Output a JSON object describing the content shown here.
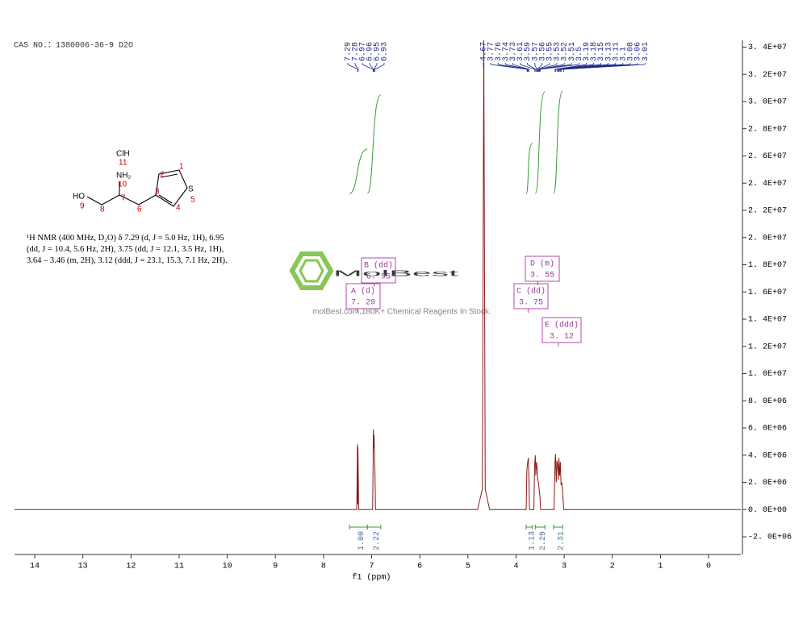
{
  "chart_data": {
    "type": "spectrum",
    "header": "CAS NO.：1380006-36-9 D2O",
    "description": "¹H NMR (400 MHz, D₂O) δ 7.29 (d, J = 5.0 Hz, 1H), 6.95 (dd, J = 10.4, 5.6 Hz, 2H), 3.75 (dd, J = 12.1, 3.5 Hz, 1H), 3.64 – 3.46 (m, 2H), 3.12 (ddd, J = 23.1, 15.3, 7.1 Hz, 2H).",
    "structure": {
      "atoms": [
        "ClH",
        "11",
        "NH₂",
        "10",
        "HO",
        "9",
        "8",
        "7",
        "6",
        "3",
        "2",
        "1",
        "S",
        "5",
        "4"
      ]
    },
    "watermark": {
      "logo": "MolBest",
      "tagline": "molBest.com,180K+ Chemical Reagents In Stock."
    },
    "x_label": "f1 (ppm)",
    "color": "#8b1a1a",
    "xlim": [
      14.42,
      -0.67
    ],
    "xticks": [
      14,
      13,
      12,
      11,
      10,
      9,
      8,
      7,
      6,
      5,
      4,
      3,
      2,
      1,
      0
    ],
    "ylim": [
      -3300000,
      34500000
    ],
    "yticks": [
      {
        "value": -2000000,
        "label": "-2. 0E+06"
      },
      {
        "value": 0,
        "label": "0. 0E+00"
      },
      {
        "value": 2000000,
        "label": "2. 0E+06"
      },
      {
        "value": 4000000,
        "label": "4. 0E+06"
      },
      {
        "value": 6000000,
        "label": "6. 0E+06"
      },
      {
        "value": 8000000,
        "label": "8. 0E+06"
      },
      {
        "value": 10000000,
        "label": "1. 0E+07"
      },
      {
        "value": 12000000,
        "label": "1. 2E+07"
      },
      {
        "value": 14000000,
        "label": "1. 4E+07"
      },
      {
        "value": 16000000,
        "label": "1. 6E+07"
      },
      {
        "value": 18000000,
        "label": "1. 8E+07"
      },
      {
        "value": 20000000,
        "label": "2. 0E+07"
      },
      {
        "value": 22000000,
        "label": "2. 2E+07"
      },
      {
        "value": 24000000,
        "label": "2. 4E+07"
      },
      {
        "value": 26000000,
        "label": "2. 6E+07"
      },
      {
        "value": 28000000,
        "label": "2. 8E+07"
      },
      {
        "value": 30000000,
        "label": "3. 0E+07"
      },
      {
        "value": 32000000,
        "label": "3. 2E+07"
      },
      {
        "value": 34000000,
        "label": "3. 4E+07"
      }
    ],
    "x": [
      14.42,
      7.31,
      7.295,
      7.29,
      7.285,
      7.27,
      6.98,
      6.97,
      6.965,
      6.955,
      6.95,
      6.94,
      6.93,
      6.92,
      4.8,
      4.7,
      4.67,
      4.64,
      4.55,
      3.79,
      3.775,
      3.765,
      3.745,
      3.735,
      3.72,
      3.63,
      3.615,
      3.6,
      3.59,
      3.575,
      3.56,
      3.55,
      3.535,
      3.52,
      3.505,
      3.49,
      3.21,
      3.19,
      3.18,
      3.165,
      3.15,
      3.135,
      3.12,
      3.11,
      3.095,
      3.08,
      3.065,
      3.05,
      3.03,
      3.01,
      -0.67
    ],
    "values": [
      0,
      0,
      4800000,
      400000,
      4600000,
      0,
      0,
      3500000,
      5900000,
      4500000,
      5500000,
      3800000,
      2500000,
      0,
      0,
      1500000,
      34500000,
      1500000,
      0,
      0,
      2900000,
      3300000,
      3800000,
      2700000,
      0,
      0,
      3200000,
      4000000,
      2500000,
      3500000,
      3000000,
      2200000,
      2000000,
      1500000,
      1000000,
      0,
      0,
      3500000,
      4100000,
      2000000,
      3600000,
      3300000,
      2200000,
      3800000,
      2500000,
      3500000,
      1800000,
      2000000,
      1200000,
      0,
      0
    ],
    "peak_labels": [
      7.29,
      7.28,
      6.97,
      6.96,
      6.95,
      6.93,
      4.67,
      3.77,
      3.76,
      3.74,
      3.73,
      3.61,
      3.59,
      3.57,
      3.56,
      3.55,
      3.53,
      3.52,
      3.51,
      3.5,
      3.19,
      3.18,
      3.15,
      3.13,
      3.11,
      3.1,
      3.08,
      3.06,
      3.01
    ],
    "integrals": {
      "color": "#3a9a3a",
      "ranges": [
        [
          7.46,
          7.09
        ],
        [
          7.09,
          6.81
        ],
        [
          3.79,
          3.66
        ],
        [
          3.6,
          3.4
        ],
        [
          3.22,
          3.03
        ]
      ],
      "values": [
        1,
        2.22,
        1.13,
        2.29,
        2.31
      ],
      "value_labels": [
        "1.00",
        "2.22",
        "1.13",
        "2.29",
        "2.31"
      ]
    },
    "multiplets": [
      {
        "label": "A (d)",
        "shift": {
          "value": 7.29,
          "label": "7. 29"
        }
      },
      {
        "label": "B (dd)",
        "shift": {
          "value": 6.95,
          "label": "6. 95"
        }
      },
      {
        "label": "C (dd)",
        "shift": {
          "value": 3.75,
          "label": "3. 75"
        }
      },
      {
        "label": "D (m)",
        "shift": {
          "value": 3.55,
          "label": "3. 55"
        }
      },
      {
        "label": "E (ddd)",
        "shift": {
          "value": 3.12,
          "label": "3. 12"
        }
      }
    ]
  }
}
